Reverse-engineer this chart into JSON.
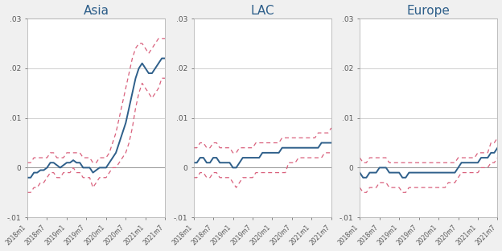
{
  "panels": [
    "Asia",
    "LAC",
    "Europe"
  ],
  "x_labels": [
    "2018m1",
    "2018m7",
    "2019m1",
    "2019m7",
    "2020m1",
    "2020m7",
    "2021m1",
    "2021m7"
  ],
  "x_ticks": [
    0,
    6,
    12,
    18,
    24,
    30,
    36,
    42
  ],
  "n_points": 43,
  "ylim": [
    -0.01,
    0.03
  ],
  "yticks": [
    -0.01,
    0.0,
    0.01,
    0.02,
    0.03
  ],
  "ytick_labels": [
    "-.01",
    "0",
    ".01",
    ".02",
    ".03"
  ],
  "line_color": "#2e5f8a",
  "ci_color": "#d9607c",
  "background_color": "#f0f0f0",
  "panel_background": "#ffffff",
  "title_color": "#2e5f8a",
  "grid_color": "#d0d0d0",
  "asia_mean": [
    -0.002,
    -0.002,
    -0.001,
    -0.001,
    -0.0005,
    -0.0005,
    0.0,
    0.001,
    0.001,
    0.0005,
    0.0,
    0.0005,
    0.001,
    0.001,
    0.0015,
    0.001,
    0.001,
    0.0,
    0.0,
    0.0,
    -0.001,
    -0.0005,
    0.0,
    0.0,
    0.0,
    0.001,
    0.002,
    0.003,
    0.005,
    0.007,
    0.009,
    0.012,
    0.015,
    0.018,
    0.02,
    0.021,
    0.02,
    0.019,
    0.019,
    0.02,
    0.021,
    0.022,
    0.022
  ],
  "asia_upper": [
    0.001,
    0.001,
    0.002,
    0.002,
    0.002,
    0.002,
    0.002,
    0.003,
    0.003,
    0.002,
    0.002,
    0.002,
    0.003,
    0.003,
    0.003,
    0.003,
    0.003,
    0.002,
    0.002,
    0.002,
    0.001,
    0.001,
    0.002,
    0.002,
    0.002,
    0.003,
    0.005,
    0.007,
    0.01,
    0.013,
    0.016,
    0.019,
    0.022,
    0.024,
    0.025,
    0.025,
    0.024,
    0.023,
    0.024,
    0.025,
    0.026,
    0.026,
    0.026
  ],
  "asia_lower": [
    -0.005,
    -0.005,
    -0.004,
    -0.004,
    -0.003,
    -0.003,
    -0.002,
    -0.001,
    -0.001,
    -0.002,
    -0.002,
    -0.001,
    -0.001,
    -0.001,
    0.0,
    -0.001,
    -0.001,
    -0.002,
    -0.002,
    -0.002,
    -0.004,
    -0.003,
    -0.002,
    -0.002,
    -0.002,
    -0.001,
    0.0,
    0.0,
    0.001,
    0.002,
    0.003,
    0.005,
    0.008,
    0.012,
    0.015,
    0.017,
    0.016,
    0.015,
    0.014,
    0.015,
    0.016,
    0.018,
    0.018
  ],
  "lac_mean": [
    0.001,
    0.001,
    0.002,
    0.002,
    0.001,
    0.001,
    0.002,
    0.002,
    0.001,
    0.001,
    0.001,
    0.001,
    0.0,
    0.0,
    0.001,
    0.002,
    0.002,
    0.002,
    0.002,
    0.002,
    0.002,
    0.003,
    0.003,
    0.003,
    0.003,
    0.003,
    0.003,
    0.004,
    0.004,
    0.004,
    0.004,
    0.004,
    0.004,
    0.004,
    0.004,
    0.004,
    0.004,
    0.004,
    0.004,
    0.005,
    0.005,
    0.005,
    0.005
  ],
  "lac_upper": [
    0.004,
    0.004,
    0.005,
    0.005,
    0.004,
    0.004,
    0.005,
    0.005,
    0.004,
    0.004,
    0.004,
    0.004,
    0.003,
    0.003,
    0.004,
    0.004,
    0.004,
    0.004,
    0.004,
    0.005,
    0.005,
    0.005,
    0.005,
    0.005,
    0.005,
    0.005,
    0.005,
    0.006,
    0.006,
    0.006,
    0.006,
    0.006,
    0.006,
    0.006,
    0.006,
    0.006,
    0.006,
    0.006,
    0.007,
    0.007,
    0.007,
    0.007,
    0.008
  ],
  "lac_lower": [
    -0.002,
    -0.002,
    -0.001,
    -0.001,
    -0.002,
    -0.002,
    -0.001,
    -0.001,
    -0.002,
    -0.002,
    -0.002,
    -0.002,
    -0.003,
    -0.004,
    -0.003,
    -0.002,
    -0.002,
    -0.002,
    -0.002,
    -0.001,
    -0.001,
    -0.001,
    -0.001,
    -0.001,
    -0.001,
    -0.001,
    -0.001,
    -0.001,
    -0.001,
    0.001,
    0.001,
    0.001,
    0.002,
    0.002,
    0.002,
    0.002,
    0.002,
    0.002,
    0.002,
    0.002,
    0.003,
    0.003,
    0.003
  ],
  "eur_mean": [
    -0.001,
    -0.002,
    -0.002,
    -0.001,
    -0.001,
    -0.001,
    0.0,
    0.0,
    0.0,
    -0.001,
    -0.001,
    -0.001,
    -0.001,
    -0.002,
    -0.002,
    -0.001,
    -0.001,
    -0.001,
    -0.001,
    -0.001,
    -0.001,
    -0.001,
    -0.001,
    -0.001,
    -0.001,
    -0.001,
    -0.001,
    -0.001,
    -0.001,
    -0.001,
    0.0,
    0.001,
    0.001,
    0.001,
    0.001,
    0.001,
    0.001,
    0.002,
    0.002,
    0.002,
    0.003,
    0.003,
    0.004
  ],
  "eur_upper": [
    0.002,
    0.001,
    0.001,
    0.002,
    0.002,
    0.002,
    0.002,
    0.002,
    0.002,
    0.001,
    0.001,
    0.001,
    0.001,
    0.001,
    0.001,
    0.001,
    0.001,
    0.001,
    0.001,
    0.001,
    0.001,
    0.001,
    0.001,
    0.001,
    0.001,
    0.001,
    0.001,
    0.001,
    0.001,
    0.001,
    0.002,
    0.002,
    0.002,
    0.002,
    0.002,
    0.002,
    0.003,
    0.003,
    0.003,
    0.003,
    0.005,
    0.005,
    0.006
  ],
  "eur_lower": [
    -0.004,
    -0.005,
    -0.005,
    -0.004,
    -0.004,
    -0.004,
    -0.003,
    -0.003,
    -0.003,
    -0.004,
    -0.004,
    -0.004,
    -0.004,
    -0.005,
    -0.005,
    -0.004,
    -0.004,
    -0.004,
    -0.004,
    -0.004,
    -0.004,
    -0.004,
    -0.004,
    -0.004,
    -0.004,
    -0.004,
    -0.004,
    -0.003,
    -0.003,
    -0.003,
    -0.002,
    -0.001,
    -0.001,
    -0.001,
    -0.001,
    -0.001,
    -0.001,
    0.0,
    0.0,
    0.0,
    0.001,
    0.001,
    0.002
  ]
}
